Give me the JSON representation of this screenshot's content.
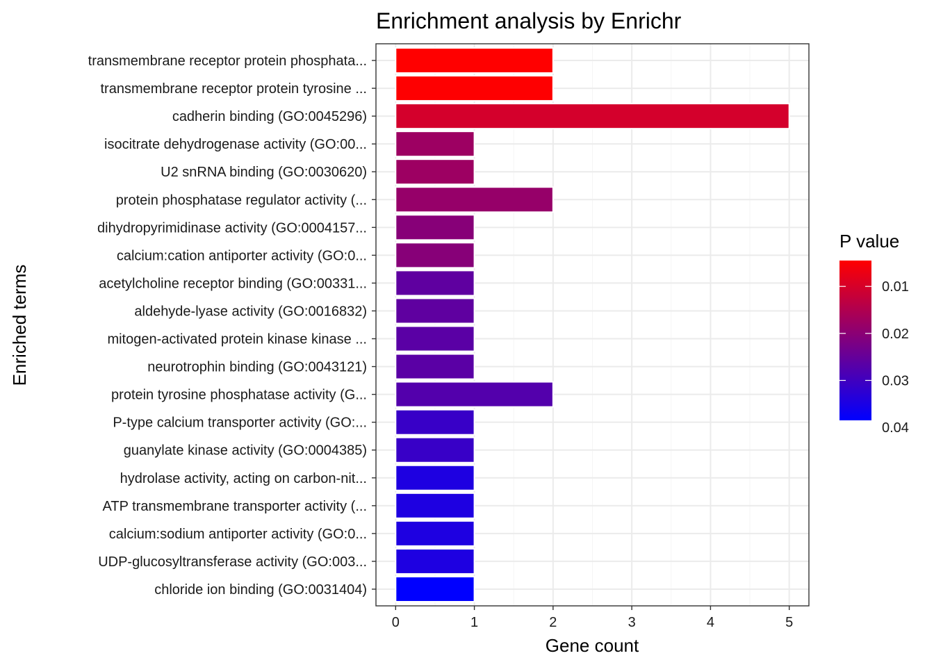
{
  "chart_data": {
    "type": "bar",
    "orientation": "horizontal",
    "title": "Enrichment analysis by Enrichr",
    "xlabel": "Gene count",
    "ylabel": "Enriched terms",
    "xlim": [
      -0.25,
      5.25
    ],
    "xticks": [
      0,
      1,
      2,
      3,
      4,
      5
    ],
    "grid": true,
    "categories": [
      "transmembrane receptor protein phosphata...",
      "transmembrane receptor protein tyrosine ...",
      "cadherin binding (GO:0045296)",
      "isocitrate dehydrogenase activity (GO:00...",
      "U2 snRNA binding (GO:0030620)",
      "protein phosphatase regulator activity (...",
      "dihydropyrimidinase activity (GO:0004157...",
      "calcium:cation antiporter activity (GO:0...",
      "acetylcholine receptor binding (GO:00331...",
      "aldehyde-lyase activity (GO:0016832)",
      "mitogen-activated protein kinase kinase ...",
      "neurotrophin binding (GO:0043121)",
      "protein tyrosine phosphatase activity (G...",
      "P-type calcium transporter activity (GO:...",
      "guanylate kinase activity (GO:0004385)",
      "hydrolase activity, acting on carbon-nit...",
      "ATP transmembrane transporter activity (...",
      "calcium:sodium antiporter activity (GO:0...",
      "UDP-glucosyltransferase activity (GO:003...",
      "chloride ion binding (GO:0031404)"
    ],
    "values": [
      2,
      2,
      5,
      1,
      1,
      2,
      1,
      1,
      1,
      1,
      1,
      1,
      2,
      1,
      1,
      1,
      1,
      1,
      1,
      1
    ],
    "p_values": [
      0.0045,
      0.0046,
      0.0103,
      0.0176,
      0.0176,
      0.0185,
      0.0205,
      0.0205,
      0.0258,
      0.0258,
      0.0265,
      0.0265,
      0.0275,
      0.031,
      0.031,
      0.0345,
      0.0345,
      0.0345,
      0.0345,
      0.0385
    ],
    "legend": {
      "title": "P value",
      "placement": "right",
      "low_color": "#ff0000",
      "high_color": "#0000ff",
      "range": [
        0.0045,
        0.0385
      ],
      "ticks": [
        0.01,
        0.02,
        0.03,
        0.04
      ],
      "tick_labels": [
        "0.01",
        "0.02",
        "0.03",
        "0.04"
      ]
    },
    "colors": {
      "panel_border": "#333333",
      "grid_major": "#ebebeb",
      "grid_minor": "#f5f5f5",
      "bar_outline": "#ffffff",
      "tick": "#333333"
    }
  }
}
